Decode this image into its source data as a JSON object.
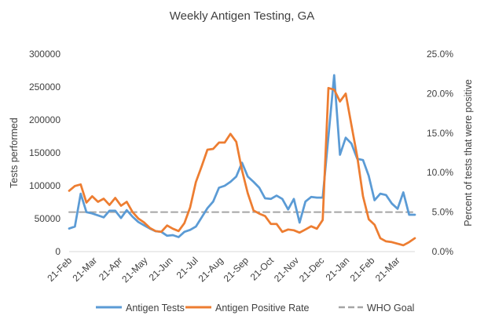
{
  "chart_data": {
    "type": "line",
    "title": "Weekly Antigen Testing, GA",
    "ylabel": "Tests performed",
    "y2label": "Percent of tests that were positive",
    "xlabel": "",
    "ylim": [
      0,
      300000
    ],
    "y2lim": [
      0,
      0.25
    ],
    "yticks": [
      "0",
      "50000",
      "100000",
      "150000",
      "200000",
      "250000",
      "300000"
    ],
    "y2ticks": [
      "0.0%",
      "5.0%",
      "10.0%",
      "15.0%",
      "20.0%",
      "25.0%"
    ],
    "xticks": [
      "21-Feb",
      "21-Mar",
      "21-Apr",
      "21-May",
      "21-Jun",
      "21-Jul",
      "21-Aug",
      "21-Sep",
      "21-Oct",
      "21-Nov",
      "21-Dec",
      "21-Jan",
      "21-Feb",
      "21-Mar"
    ],
    "grid": false,
    "legend_position": "bottom",
    "series": [
      {
        "name": "Antigen Tests",
        "color": "#5B9BD5",
        "axis": "left",
        "values": [
          35000,
          38000,
          88000,
          60000,
          58000,
          55000,
          52000,
          62000,
          62000,
          51000,
          63000,
          53000,
          45000,
          40000,
          35000,
          31000,
          30000,
          24000,
          25000,
          22000,
          30000,
          33000,
          38000,
          52000,
          66000,
          76000,
          97000,
          100000,
          106000,
          114000,
          135000,
          114000,
          106000,
          97000,
          81000,
          80000,
          85000,
          80000,
          64000,
          80000,
          44000,
          76000,
          83000,
          82000,
          82000,
          175000,
          268000,
          147000,
          173000,
          164000,
          141000,
          139000,
          115000,
          78000,
          88000,
          86000,
          73000,
          65000,
          90000,
          56000,
          56000
        ]
      },
      {
        "name": "Antigen Positive Rate",
        "color": "#ED7D31",
        "axis": "right",
        "values": [
          0.077,
          0.083,
          0.085,
          0.062,
          0.07,
          0.063,
          0.067,
          0.059,
          0.068,
          0.058,
          0.063,
          0.05,
          0.042,
          0.037,
          0.03,
          0.026,
          0.025,
          0.033,
          0.029,
          0.026,
          0.036,
          0.056,
          0.088,
          0.108,
          0.129,
          0.13,
          0.138,
          0.138,
          0.149,
          0.139,
          0.103,
          0.074,
          0.052,
          0.048,
          0.045,
          0.035,
          0.035,
          0.025,
          0.028,
          0.027,
          0.024,
          0.028,
          0.032,
          0.029,
          0.04,
          0.207,
          0.205,
          0.19,
          0.2,
          0.16,
          0.12,
          0.07,
          0.041,
          0.034,
          0.017,
          0.013,
          0.012,
          0.01,
          0.008,
          0.012,
          0.017
        ]
      },
      {
        "name": "WHO Goal",
        "color": "#A5A5A5",
        "axis": "right",
        "dashed": true,
        "values": [
          0.05,
          0.05
        ]
      }
    ]
  }
}
